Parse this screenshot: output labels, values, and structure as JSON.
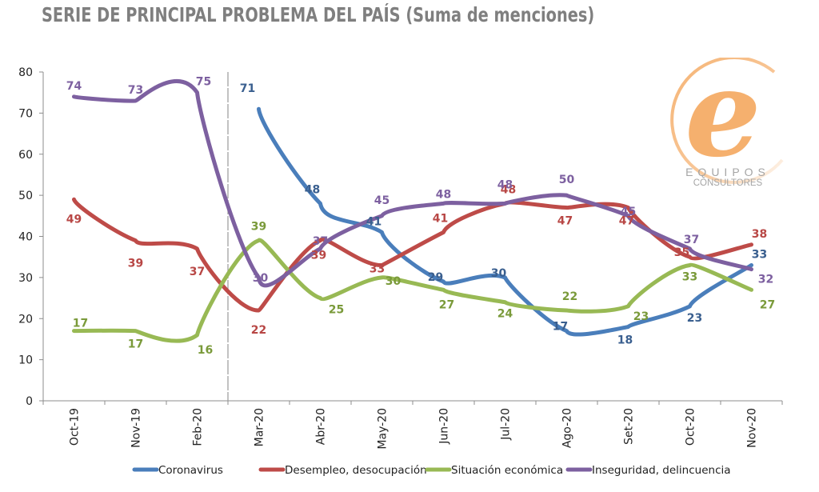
{
  "title": "SERIE DE PRINCIPAL PROBLEMA DEL PAÍS (Suma de menciones)",
  "logo": {
    "letter": "e",
    "line1": "EQUIPOS",
    "line2": "CONSULTORES",
    "color": "#f5b06e"
  },
  "chart_data": {
    "type": "line",
    "title": "SERIE DE PRINCIPAL PROBLEMA DEL PAÍS (Suma de menciones)",
    "xlabel": "",
    "ylabel": "",
    "ylim": [
      0,
      80
    ],
    "yticks": [
      0,
      10,
      20,
      30,
      40,
      50,
      60,
      70,
      80
    ],
    "grid": false,
    "smooth": true,
    "legend_position": "bottom",
    "divider_after_category": "Feb-20",
    "categories": [
      "Oct-19",
      "Nov-19",
      "Feb-20",
      "Mar-20",
      "Abr-20",
      "May-20",
      "Jun-20",
      "Jul-20",
      "Ago-20",
      "Set-20",
      "Oct-20",
      "Nov-20"
    ],
    "series": [
      {
        "name": "Coronavirus",
        "color": "#4a7ebb",
        "label_color": "#3a5f8f",
        "values": [
          null,
          null,
          null,
          71,
          48,
          41,
          29,
          30,
          17,
          18,
          23,
          33
        ]
      },
      {
        "name": "Desempleo, desocupación",
        "color": "#be4b48",
        "label_color": "#b84745",
        "values": [
          49,
          39,
          37,
          22,
          39,
          33,
          41,
          48,
          47,
          47,
          35,
          38
        ]
      },
      {
        "name": "Situación económica",
        "color": "#98b954",
        "label_color": "#7a9a3a",
        "values": [
          17,
          17,
          16,
          39,
          25,
          30,
          27,
          24,
          22,
          23,
          33,
          27
        ]
      },
      {
        "name": "Inseguridad, delincuencia",
        "color": "#7d60a0",
        "label_color": "#7d60a0",
        "values": [
          74,
          73,
          75,
          30,
          37,
          45,
          48,
          48,
          50,
          45,
          37,
          32
        ]
      }
    ]
  }
}
